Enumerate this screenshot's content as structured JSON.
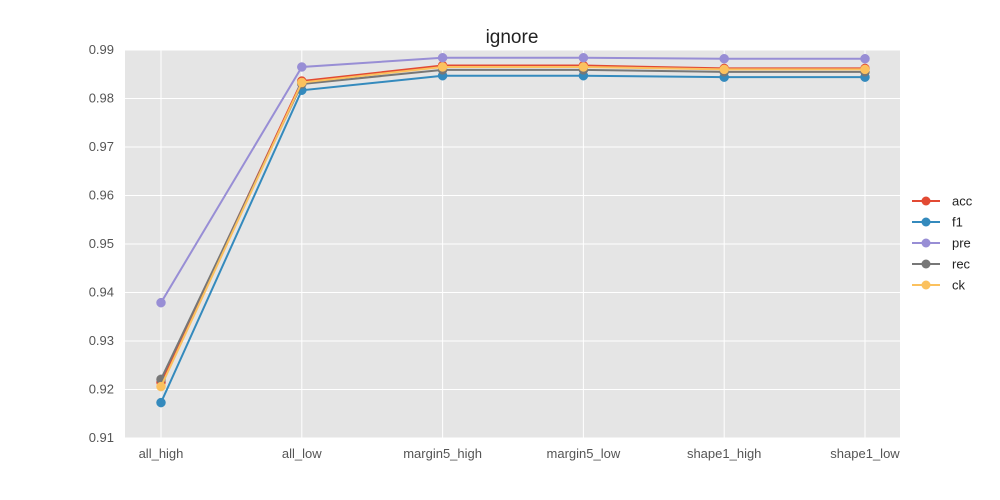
{
  "chart_data": {
    "type": "line",
    "title": "ignore",
    "xlabel": "",
    "ylabel": "",
    "categories": [
      "all_high",
      "all_low",
      "margin5_high",
      "margin5_low",
      "shape1_high",
      "shape1_low"
    ],
    "ylim": [
      0.91,
      0.99
    ],
    "yticks": [
      "0.91",
      "0.92",
      "0.93",
      "0.94",
      "0.95",
      "0.96",
      "0.97",
      "0.98",
      "0.99"
    ],
    "grid": true,
    "legend_position": "right",
    "series": [
      {
        "name": "acc",
        "color": "#E24A33",
        "values": [
          0.9215,
          0.9836,
          0.9868,
          0.9868,
          0.9862,
          0.9862
        ]
      },
      {
        "name": "f1",
        "color": "#348ABD",
        "values": [
          0.9173,
          0.9817,
          0.9847,
          0.9847,
          0.9844,
          0.9844
        ]
      },
      {
        "name": "pre",
        "color": "#988ED5",
        "values": [
          0.9379,
          0.9865,
          0.9884,
          0.9884,
          0.9882,
          0.9882
        ]
      },
      {
        "name": "rec",
        "color": "#777777",
        "values": [
          0.9221,
          0.983,
          0.9859,
          0.9859,
          0.9855,
          0.9855
        ]
      },
      {
        "name": "ck",
        "color": "#FBC15E",
        "values": [
          0.9206,
          0.9833,
          0.9865,
          0.9865,
          0.986,
          0.986
        ]
      }
    ]
  }
}
